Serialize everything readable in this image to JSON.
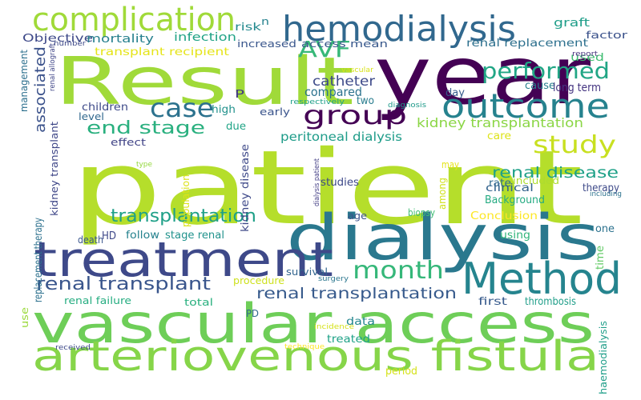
{
  "words": [
    {
      "text": "patient",
      "color": "#b5de2b"
    },
    {
      "text": "vascular access",
      "color": "#6ece58"
    },
    {
      "text": "arteriovenous fistula",
      "color": "#86d549"
    },
    {
      "text": "year",
      "color": "#440154"
    },
    {
      "text": "Result",
      "color": "#a0da39"
    },
    {
      "text": "dialysis",
      "color": "#2a788e"
    },
    {
      "text": "treatment",
      "color": "#3e4989"
    },
    {
      "text": "Method",
      "color": "#25848e"
    },
    {
      "text": "hemodialysis",
      "color": "#31688e"
    },
    {
      "text": "outcome",
      "color": "#26828e"
    },
    {
      "text": "complication",
      "color": "#a0da39"
    },
    {
      "text": "group",
      "color": "#440154"
    },
    {
      "text": "case",
      "color": "#2c728e"
    },
    {
      "text": "study",
      "color": "#c8e020"
    },
    {
      "text": "month",
      "color": "#35b779"
    },
    {
      "text": "performed",
      "color": "#21a685"
    },
    {
      "text": "AVF",
      "color": "#37b878"
    },
    {
      "text": "associated",
      "color": "#3b528b"
    },
    {
      "text": "end stage",
      "color": "#2ab07f"
    },
    {
      "text": "renal transplant",
      "color": "#39558c"
    },
    {
      "text": "transplantation",
      "color": "#1fa088"
    },
    {
      "text": "renal transplantation",
      "color": "#375a8c"
    },
    {
      "text": "renal disease",
      "color": "#1fa188"
    },
    {
      "text": "kidney transplantation",
      "color": "#8bd646"
    },
    {
      "text": "catheter",
      "color": "#3e4a89"
    },
    {
      "text": "compared",
      "color": "#2c728e"
    },
    {
      "text": "peritoneal dialysis",
      "color": "#1e9c89"
    },
    {
      "text": "Objective",
      "color": "#3e4989"
    },
    {
      "text": "mortality",
      "color": "#27808e"
    },
    {
      "text": "infection",
      "color": "#20a386"
    },
    {
      "text": "risk",
      "color": "#23898e"
    },
    {
      "text": "n",
      "color": "#26828e"
    },
    {
      "text": "increased",
      "color": "#39568c"
    },
    {
      "text": "access mean",
      "color": "#38588c"
    },
    {
      "text": "renal replacement",
      "color": "#2d708e"
    },
    {
      "text": "graft",
      "color": "#1f9e89"
    },
    {
      "text": "factor",
      "color": "#3b528b"
    },
    {
      "text": "used",
      "color": "#40bd72"
    },
    {
      "text": "report",
      "color": "#46337e"
    },
    {
      "text": "transplant recipient",
      "color": "#e5e419"
    },
    {
      "text": "management",
      "color": "#2d708e"
    },
    {
      "text": "number",
      "color": "#3e4989"
    },
    {
      "text": "renal allograft",
      "color": "#404688"
    },
    {
      "text": "vascular",
      "color": "#d8e219"
    },
    {
      "text": "P",
      "color": "#443983"
    },
    {
      "text": "day",
      "color": "#365c8d"
    },
    {
      "text": "cause",
      "color": "#277f8e"
    },
    {
      "text": "long term",
      "color": "#453581"
    },
    {
      "text": "two",
      "color": "#287c8e"
    },
    {
      "text": "respectively",
      "color": "#1fa088"
    },
    {
      "text": "diagnosis",
      "color": "#1f9a8a"
    },
    {
      "text": "children",
      "color": "#3e4a89"
    },
    {
      "text": "high",
      "color": "#21918c"
    },
    {
      "text": "early",
      "color": "#3a548c"
    },
    {
      "text": "level",
      "color": "#31688e"
    },
    {
      "text": "due",
      "color": "#20a486"
    },
    {
      "text": "kidney disease",
      "color": "#3e4989"
    },
    {
      "text": "kidney transplant",
      "color": "#3f4788"
    },
    {
      "text": "effect",
      "color": "#414487"
    },
    {
      "text": "care",
      "color": "#dde318"
    },
    {
      "text": "type",
      "color": "#95d840"
    },
    {
      "text": "dialysis patient",
      "color": "#433e85"
    },
    {
      "text": "may",
      "color": "#e5e419"
    },
    {
      "text": "rate",
      "color": "#2f6b8e"
    },
    {
      "text": "included",
      "color": "#addc30"
    },
    {
      "text": "therapy",
      "color": "#3e4a89"
    },
    {
      "text": "including",
      "color": "#2c728e"
    },
    {
      "text": "clinical",
      "color": "#33638d"
    },
    {
      "text": "replacement therapy",
      "color": "#2d718e"
    },
    {
      "text": "population",
      "color": "#dce319"
    },
    {
      "text": "studies",
      "color": "#3e4989"
    },
    {
      "text": "among",
      "color": "#d0e11c"
    },
    {
      "text": "Background",
      "color": "#25ab82"
    },
    {
      "text": "biopsy",
      "color": "#3fbc73"
    },
    {
      "text": "age",
      "color": "#3b528b"
    },
    {
      "text": "Conclusion",
      "color": "#fde725"
    },
    {
      "text": "using",
      "color": "#31b57b"
    },
    {
      "text": "HD",
      "color": "#3f4889"
    },
    {
      "text": "follow",
      "color": "#26828e"
    },
    {
      "text": "stage renal",
      "color": "#20928c"
    },
    {
      "text": "death",
      "color": "#39558c"
    },
    {
      "text": "one",
      "color": "#2c728e"
    },
    {
      "text": "survival",
      "color": "#32658e"
    },
    {
      "text": "surgery",
      "color": "#2a768e"
    },
    {
      "text": "procedure",
      "color": "#cde11d"
    },
    {
      "text": "time",
      "color": "#5ec962"
    },
    {
      "text": "renal failure",
      "color": "#26ad81"
    },
    {
      "text": "total",
      "color": "#2ab07f"
    },
    {
      "text": "first",
      "color": "#375a8c"
    },
    {
      "text": "thrombosis",
      "color": "#1f9e89"
    },
    {
      "text": "use",
      "color": "#9bd93c"
    },
    {
      "text": "PD",
      "color": "#30698e"
    },
    {
      "text": "data",
      "color": "#24878e"
    },
    {
      "text": "treated",
      "color": "#1fa287"
    },
    {
      "text": "haemodialysis",
      "color": "#1f9e89"
    },
    {
      "text": "incidence",
      "color": "#d5e21a"
    },
    {
      "text": "technique",
      "color": "#fde725"
    },
    {
      "text": "received",
      "color": "#3e4a89"
    },
    {
      "text": "period",
      "color": "#d5e21a"
    }
  ]
}
